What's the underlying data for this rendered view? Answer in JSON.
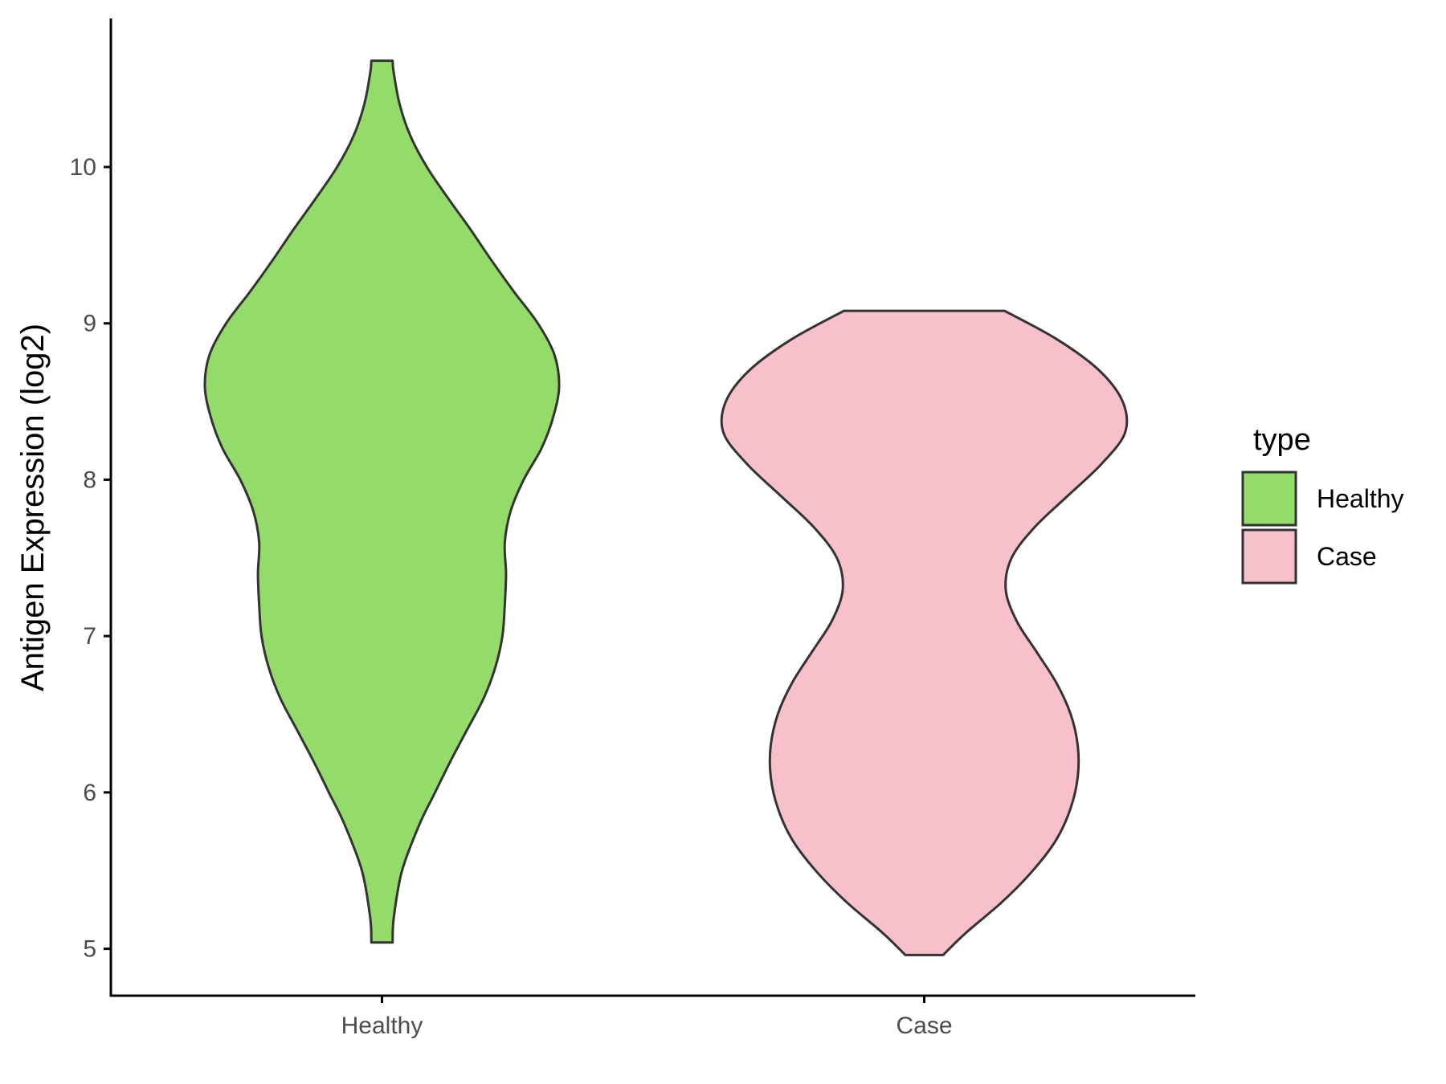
{
  "chart_data": {
    "type": "violin",
    "title": "",
    "xlabel": "",
    "ylabel": "Antigen Expression (log2)",
    "ylim": [
      4.7,
      10.95
    ],
    "yticks": [
      5,
      6,
      7,
      8,
      9,
      10
    ],
    "categories": [
      "Healthy",
      "Case"
    ],
    "legend": {
      "title": "type",
      "position": "right",
      "entries": [
        "Healthy",
        "Case"
      ]
    },
    "grid": false,
    "series": [
      {
        "name": "Healthy",
        "color": "#93DC6A",
        "ymin": 5.04,
        "ymax": 10.68,
        "density_profile": [
          [
            5.04,
            0.09
          ],
          [
            5.2,
            0.1
          ],
          [
            5.5,
            0.17
          ],
          [
            5.8,
            0.32
          ],
          [
            6.0,
            0.45
          ],
          [
            6.2,
            0.58
          ],
          [
            6.4,
            0.72
          ],
          [
            6.6,
            0.86
          ],
          [
            6.8,
            0.96
          ],
          [
            7.0,
            1.02
          ],
          [
            7.2,
            1.04
          ],
          [
            7.4,
            1.05
          ],
          [
            7.6,
            1.04
          ],
          [
            7.8,
            1.09
          ],
          [
            8.0,
            1.2
          ],
          [
            8.2,
            1.35
          ],
          [
            8.4,
            1.45
          ],
          [
            8.6,
            1.5
          ],
          [
            8.8,
            1.46
          ],
          [
            9.0,
            1.32
          ],
          [
            9.2,
            1.12
          ],
          [
            9.4,
            0.93
          ],
          [
            9.6,
            0.75
          ],
          [
            9.8,
            0.56
          ],
          [
            10.0,
            0.38
          ],
          [
            10.2,
            0.24
          ],
          [
            10.4,
            0.15
          ],
          [
            10.6,
            0.1
          ],
          [
            10.68,
            0.09
          ]
        ]
      },
      {
        "name": "Case",
        "color": "#F8C0CB",
        "ymin": 4.96,
        "ymax": 9.08,
        "density_profile": [
          [
            4.96,
            0.16
          ],
          [
            5.1,
            0.35
          ],
          [
            5.3,
            0.66
          ],
          [
            5.5,
            0.92
          ],
          [
            5.7,
            1.12
          ],
          [
            5.9,
            1.24
          ],
          [
            6.1,
            1.3
          ],
          [
            6.3,
            1.3
          ],
          [
            6.5,
            1.24
          ],
          [
            6.7,
            1.12
          ],
          [
            6.9,
            0.95
          ],
          [
            7.1,
            0.78
          ],
          [
            7.3,
            0.69
          ],
          [
            7.5,
            0.74
          ],
          [
            7.7,
            0.94
          ],
          [
            7.9,
            1.22
          ],
          [
            8.1,
            1.5
          ],
          [
            8.3,
            1.7
          ],
          [
            8.5,
            1.68
          ],
          [
            8.7,
            1.48
          ],
          [
            8.9,
            1.12
          ],
          [
            9.08,
            0.68
          ]
        ]
      }
    ]
  }
}
